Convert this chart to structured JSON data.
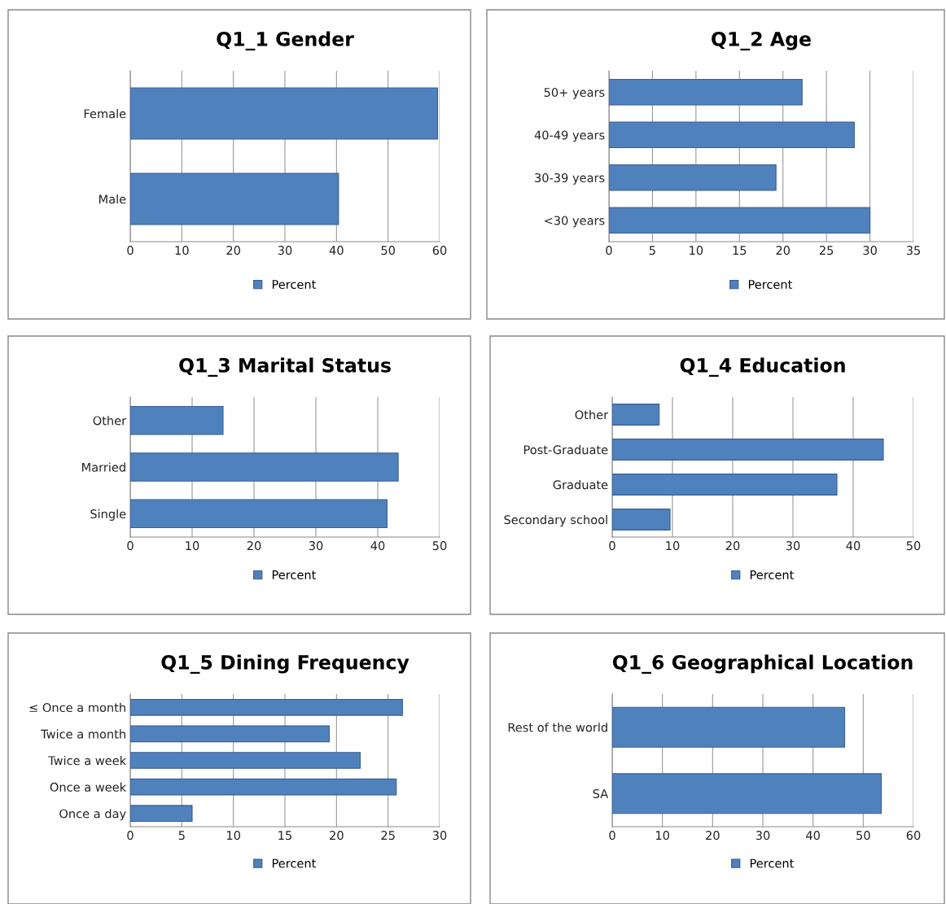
{
  "chart_data": [
    {
      "type": "bar",
      "orientation": "horizontal",
      "title": "Q1_1 Gender",
      "categories": [
        "Female",
        "Male"
      ],
      "series": [
        {
          "name": "Percent",
          "color": "#4f81bd",
          "values": [
            59.6,
            40.4
          ]
        }
      ],
      "xlim": [
        0,
        60
      ],
      "xticks": [
        0,
        10,
        20,
        30,
        40,
        50,
        60
      ],
      "grid": "x",
      "legend": "bottom"
    },
    {
      "type": "bar",
      "orientation": "horizontal",
      "title": "Q1_2 Age",
      "categories": [
        "50+ years",
        "40-49 years",
        "30-39 years",
        "<30 years"
      ],
      "series": [
        {
          "name": "Percent",
          "color": "#4f81bd",
          "values": [
            22.2,
            28.2,
            19.2,
            30.0
          ]
        }
      ],
      "xlim": [
        0,
        35
      ],
      "xticks": [
        0,
        5,
        10,
        15,
        20,
        25,
        30,
        35
      ],
      "grid": "x",
      "legend": "bottom"
    },
    {
      "type": "bar",
      "orientation": "horizontal",
      "title": "Q1_3 Marital Status",
      "categories": [
        "Other",
        "Married",
        "Single"
      ],
      "series": [
        {
          "name": "Percent",
          "color": "#4f81bd",
          "values": [
            15.0,
            43.3,
            41.5
          ]
        }
      ],
      "xlim": [
        0,
        50
      ],
      "xticks": [
        0,
        10,
        20,
        30,
        40,
        50
      ],
      "grid": "x",
      "legend": "bottom"
    },
    {
      "type": "bar",
      "orientation": "horizontal",
      "title": "Q1_4 Education",
      "categories": [
        "Other",
        "Post-Graduate",
        "Graduate",
        "Secondary school"
      ],
      "series": [
        {
          "name": "Percent",
          "color": "#4f81bd",
          "values": [
            7.8,
            45.0,
            37.3,
            9.6
          ]
        }
      ],
      "xlim": [
        0,
        50
      ],
      "xticks": [
        0,
        10,
        20,
        30,
        40,
        50
      ],
      "grid": "x",
      "legend": "bottom"
    },
    {
      "type": "bar",
      "orientation": "horizontal",
      "title": "Q1_5 Dining Frequency",
      "categories": [
        "≤ Once a month",
        "Twice a month",
        "Twice a week",
        "Once a week",
        "Once a day"
      ],
      "series": [
        {
          "name": "Percent",
          "color": "#4f81bd",
          "values": [
            26.4,
            19.3,
            22.3,
            25.8,
            6.0
          ]
        }
      ],
      "xlim": [
        0,
        30
      ],
      "xticks": [
        0,
        5,
        10,
        15,
        20,
        25,
        30
      ],
      "grid": "x",
      "legend": "bottom"
    },
    {
      "type": "bar",
      "orientation": "horizontal",
      "title": "Q1_6 Geographical Location",
      "categories": [
        "Rest of the world",
        "SA"
      ],
      "series": [
        {
          "name": "Percent",
          "color": "#4f81bd",
          "values": [
            46.3,
            53.6
          ]
        }
      ],
      "xlim": [
        0,
        60
      ],
      "xticks": [
        0,
        10,
        20,
        30,
        40,
        50,
        60
      ],
      "grid": "x",
      "legend": "bottom"
    }
  ]
}
